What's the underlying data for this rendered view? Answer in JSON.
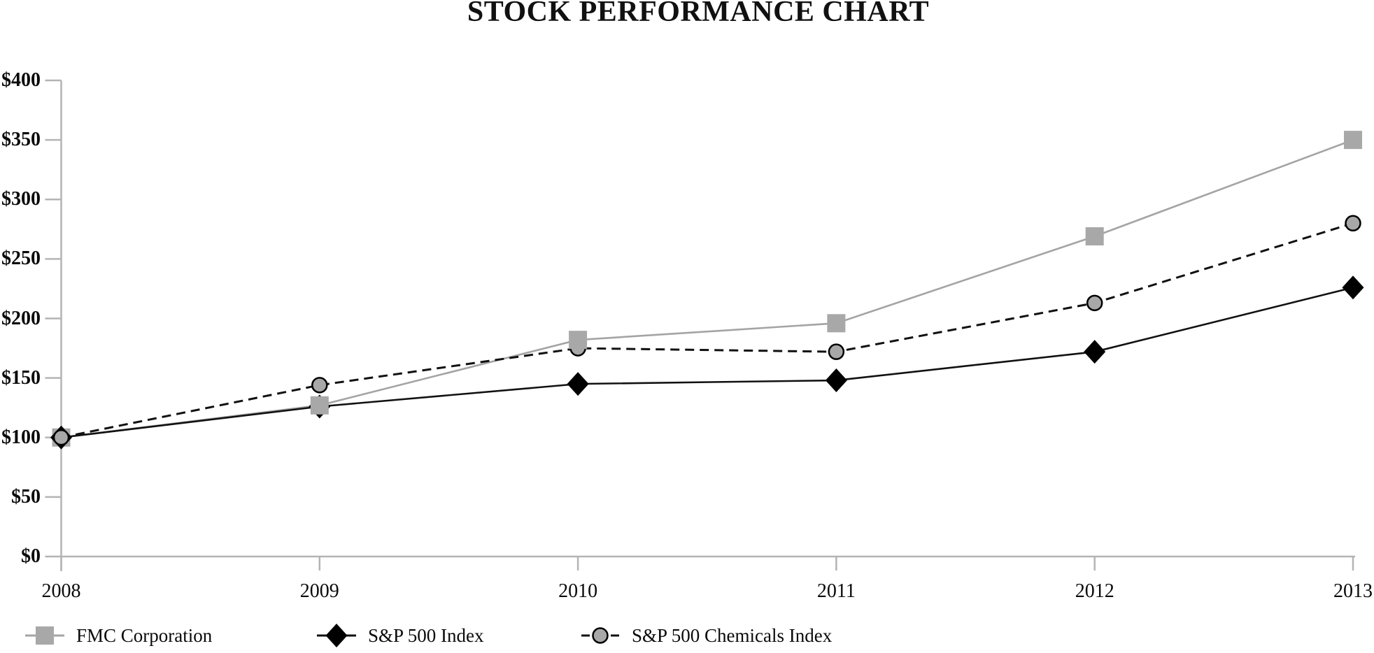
{
  "title": "STOCK PERFORMANCE CHART",
  "chart_data": {
    "type": "line",
    "x": [
      2008,
      2009,
      2010,
      2011,
      2012,
      2013
    ],
    "x_tick_labels": [
      "2008",
      "2009",
      "2010",
      "2011",
      "2012",
      "2013"
    ],
    "y_tick_labels": [
      "$0",
      "$50",
      "$100",
      "$150",
      "$200",
      "$250",
      "$300",
      "$350",
      "$400"
    ],
    "ylim": [
      0,
      400
    ],
    "y_tick_step": 50,
    "grid": false,
    "legend_position": "bottom",
    "series": [
      {
        "name": "FMC Corporation",
        "marker": "square",
        "line_style": "solid",
        "line_color": "#a4a4a4",
        "marker_fill": "#a8a8a8",
        "marker_stroke": "none",
        "values": [
          100,
          127,
          182,
          196,
          269,
          350
        ]
      },
      {
        "name": "S&P 500 Index",
        "marker": "diamond",
        "line_style": "solid",
        "line_color": "#111111",
        "marker_fill": "#000000",
        "marker_stroke": "none",
        "values": [
          100,
          126,
          145,
          148,
          172,
          226
        ]
      },
      {
        "name": "S&P 500 Chemicals Index",
        "marker": "circle",
        "line_style": "dashed",
        "line_color": "#111111",
        "marker_fill": "#a8a8a8",
        "marker_stroke": "#000000",
        "values": [
          100,
          144,
          175,
          172,
          213,
          280
        ]
      }
    ]
  },
  "colors": {
    "background": "#ffffff",
    "axis": "#b4b4b4",
    "text": "#0a0a0a"
  }
}
